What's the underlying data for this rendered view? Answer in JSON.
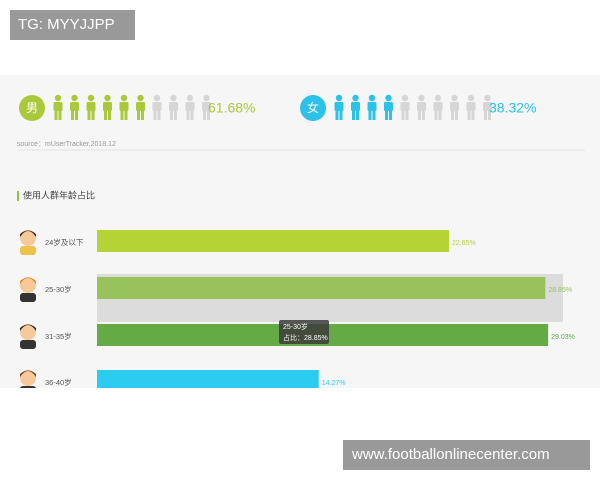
{
  "watermark_top": "TG: MYYJJPP",
  "watermark_bottom": "www.footballonlinecenter.com",
  "gender": [
    {
      "label": "男",
      "value": 61.68,
      "value_label": "61.68%",
      "color": "#a9c93a"
    },
    {
      "label": "女",
      "value": 38.32,
      "value_label": "38.32%",
      "color": "#2bc1e9"
    }
  ],
  "source": "source：mUserTracker,2018.12",
  "chart_data": {
    "type": "bar",
    "title": "使用人群年龄占比",
    "categories": [
      "24岁及以下",
      "25-30岁",
      "31-35岁",
      "36-40岁"
    ],
    "values": [
      22.65,
      28.85,
      29.03,
      14.27
    ],
    "value_labels": [
      "22.65%",
      "28.85%",
      "29.03%",
      "14.27%"
    ],
    "colors": [
      "#b5d334",
      "#98c35c",
      "#64aa45",
      "#2ccbf0"
    ],
    "tooltip": [
      "25-30岁",
      "占比：28.85%"
    ]
  }
}
